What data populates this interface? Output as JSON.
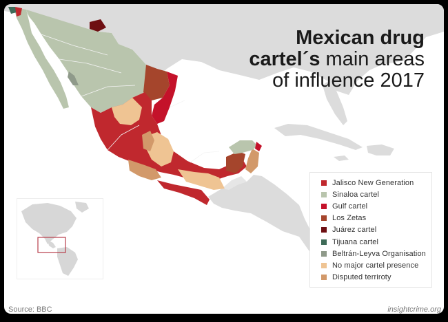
{
  "title": {
    "line1": "Mexican drug",
    "line2_bold": "cartel´s",
    "line2_rest": " main areas",
    "line3": "of influence 2017"
  },
  "legend": [
    {
      "label": "Jalisco New Generation",
      "color": "#c0282e",
      "key": "jalisco"
    },
    {
      "label": "Sinaloa cartel",
      "color": "#b9c5ad",
      "key": "sinaloa"
    },
    {
      "label": "Gulf cartel",
      "color": "#c4122a",
      "key": "gulf"
    },
    {
      "label": "Los Zetas",
      "color": "#a5452c",
      "key": "zetas"
    },
    {
      "label": "Juárez cartel",
      "color": "#6e0f12",
      "key": "juarez"
    },
    {
      "label": "Tijuana cartel",
      "color": "#3e6b58",
      "key": "tijuana"
    },
    {
      "label": "Beltrán-Leyva Organisation",
      "color": "#8f9a8a",
      "key": "beltran"
    },
    {
      "label": "No major cartel presence",
      "color": "#efc493",
      "key": "none"
    },
    {
      "label": "Disputed terriroty",
      "color": "#d2996a",
      "key": "disputed"
    }
  ],
  "colors": {
    "land_other": "#dcdcdc",
    "water": "#ffffff",
    "border_line": "#f4f4f4",
    "inset_land": "#d7d7d7",
    "inset_highlight": "#b83d4a"
  },
  "footer": {
    "source": "Source: BBC",
    "credit": "insightcrime.org"
  }
}
